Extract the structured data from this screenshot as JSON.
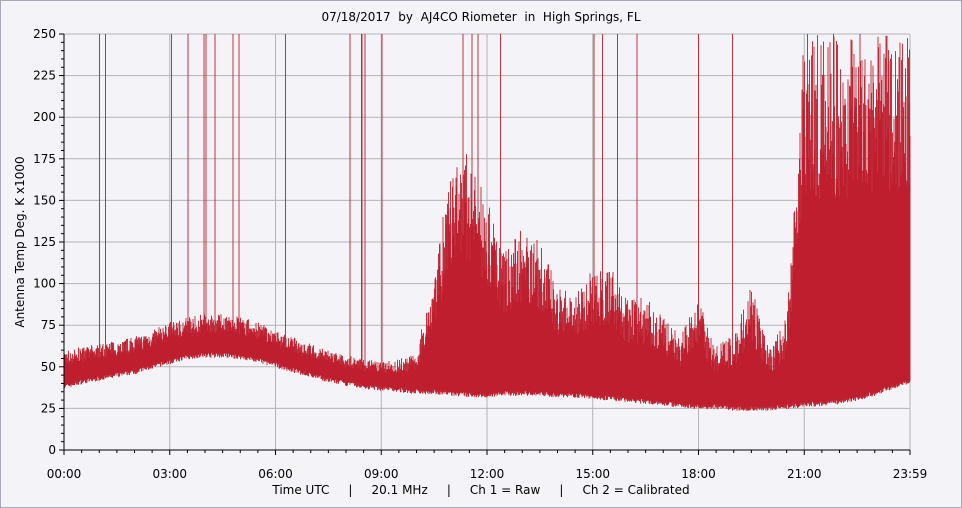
{
  "colors": {
    "series": "#be1e2d",
    "background": "#f4f4f8",
    "grid": "#b4b4b4"
  },
  "chart_data": {
    "type": "area",
    "title": "07/18/2017  by  AJ4CO Riometer  in  High Springs, FL",
    "ylabel": "Antenna Temp Deg. K x1000",
    "footer": "Time UTC     |     20.1 MHz     |     Ch 1 = Raw     |     Ch 2 = Calibrated",
    "x_ticks": [
      "00:00",
      "03:00",
      "06:00",
      "09:00",
      "12:00",
      "15:00",
      "18:00",
      "21:00",
      "23:59"
    ],
    "y_ticks": [
      "0",
      "25",
      "50",
      "75",
      "100",
      "125",
      "150",
      "175",
      "200",
      "225",
      "250"
    ],
    "xlim_hours": [
      0,
      24
    ],
    "ylim": [
      0,
      250
    ],
    "grid": true,
    "series": [
      {
        "x_hours": [
          0.0,
          0.5,
          1.0,
          1.5,
          2.0,
          2.5,
          3.0,
          3.5,
          4.0,
          4.5,
          5.0,
          5.5,
          6.0,
          6.5,
          7.0,
          7.5,
          8.0,
          8.5,
          9.0,
          9.5,
          10.0,
          10.5,
          11.0,
          11.5,
          12.0,
          12.5,
          13.0,
          13.5,
          14.0,
          14.5,
          15.0,
          15.5,
          16.0,
          16.5,
          17.0,
          17.5,
          18.0,
          18.5,
          19.0,
          19.5,
          20.0,
          20.5,
          21.0,
          21.5,
          22.0,
          22.5,
          23.0,
          23.5,
          23.98
        ],
        "floor": [
          38,
          41,
          43,
          45,
          47,
          50,
          53,
          56,
          57,
          57,
          56,
          54,
          51,
          48,
          45,
          42,
          40,
          38,
          37,
          36,
          35,
          35,
          34,
          33,
          33,
          34,
          34,
          34,
          33,
          33,
          32,
          31,
          30,
          29,
          28,
          27,
          26,
          26,
          25,
          25,
          25,
          26,
          27,
          28,
          29,
          31,
          34,
          38,
          41
        ],
        "envelope": [
          60,
          62,
          64,
          66,
          68,
          72,
          77,
          80,
          82,
          82,
          80,
          77,
          72,
          68,
          64,
          60,
          57,
          55,
          53,
          55,
          58,
          110,
          170,
          180,
          150,
          120,
          135,
          125,
          100,
          95,
          110,
          110,
          90,
          92,
          80,
          70,
          90,
          62,
          70,
          100,
          60,
          80,
          250,
          250,
          250,
          250,
          250,
          250,
          250
        ]
      }
    ]
  }
}
